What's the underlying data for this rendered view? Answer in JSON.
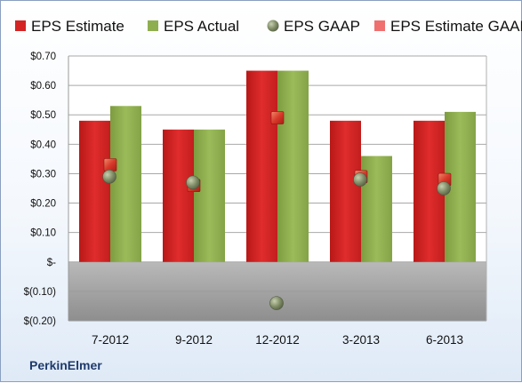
{
  "company": "PerkinElmer",
  "colors": {
    "estimate": "#d42424",
    "actual": "#8fae4f",
    "gaap": "#7f8c66",
    "estimate_gaap": "#e05040"
  },
  "chart_data": {
    "type": "bar",
    "categories": [
      "7-2012",
      "9-2012",
      "12-2012",
      "3-2013",
      "6-2013"
    ],
    "series": [
      {
        "name": "EPS Estimate",
        "kind": "bar",
        "values": [
          0.48,
          0.45,
          0.65,
          0.48,
          0.48
        ]
      },
      {
        "name": "EPS Actual",
        "kind": "bar",
        "values": [
          0.53,
          0.45,
          0.65,
          0.36,
          0.51
        ]
      },
      {
        "name": "EPS GAAP",
        "kind": "marker-circle",
        "values": [
          0.29,
          0.27,
          -0.14,
          0.28,
          0.25
        ]
      },
      {
        "name": "EPS Estimate GAAP",
        "kind": "marker-square",
        "values": [
          0.33,
          0.26,
          0.49,
          0.29,
          0.28
        ]
      }
    ],
    "yticks": [
      {
        "value": 0.7,
        "label": "$0.70"
      },
      {
        "value": 0.6,
        "label": "$0.60"
      },
      {
        "value": 0.5,
        "label": "$0.50"
      },
      {
        "value": 0.4,
        "label": "$0.40"
      },
      {
        "value": 0.3,
        "label": "$0.30"
      },
      {
        "value": 0.2,
        "label": "$0.20"
      },
      {
        "value": 0.1,
        "label": "$0.10"
      },
      {
        "value": 0.0,
        "label": "$-"
      },
      {
        "value": -0.1,
        "label": "$(0.10)"
      },
      {
        "value": -0.2,
        "label": "$(0.20)"
      }
    ],
    "ylim": [
      -0.2,
      0.7
    ],
    "grid": true,
    "legend_position": "top"
  }
}
